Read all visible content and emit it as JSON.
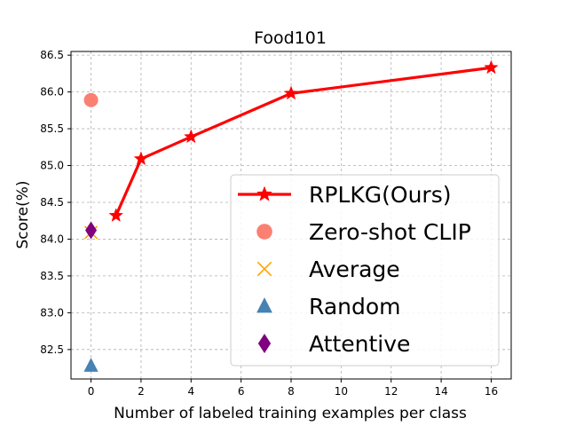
{
  "chart_data": {
    "type": "line",
    "title": "Food101",
    "xlabel": "Number of labeled training examples per class",
    "ylabel": "Score(%)",
    "xlim": [
      -0.8,
      16.8
    ],
    "ylim": [
      82.1,
      86.55
    ],
    "xticks": [
      0,
      2,
      4,
      6,
      8,
      10,
      12,
      14,
      16
    ],
    "yticks": [
      82.5,
      83.0,
      83.5,
      84.0,
      84.5,
      85.0,
      85.5,
      86.0,
      86.5
    ],
    "xtick_labels": [
      "0",
      "2",
      "4",
      "6",
      "8",
      "10",
      "12",
      "14",
      "16"
    ],
    "ytick_labels": [
      "82.5",
      "83.0",
      "83.5",
      "84.0",
      "84.5",
      "85.0",
      "85.5",
      "86.0",
      "86.5"
    ],
    "grid": true,
    "legend_position": "lower-right",
    "series": [
      {
        "name": "RPLKG(Ours)",
        "marker": "star",
        "color": "#ff0000",
        "line": true,
        "x": [
          1,
          2,
          4,
          8,
          16
        ],
        "y": [
          84.32,
          85.09,
          85.39,
          85.98,
          86.33
        ]
      },
      {
        "name": "Zero-shot CLIP",
        "marker": "circle",
        "color": "#fa8072",
        "line": false,
        "x": [
          0
        ],
        "y": [
          85.89
        ]
      },
      {
        "name": "Average",
        "marker": "x",
        "color": "#ffa500",
        "line": false,
        "x": [
          0
        ],
        "y": [
          84.09
        ]
      },
      {
        "name": "Random",
        "marker": "triangle",
        "color": "#4682b4",
        "line": false,
        "x": [
          0
        ],
        "y": [
          82.28
        ]
      },
      {
        "name": "Attentive",
        "marker": "diamond",
        "color": "#800080",
        "line": false,
        "x": [
          0
        ],
        "y": [
          84.12
        ]
      }
    ]
  }
}
